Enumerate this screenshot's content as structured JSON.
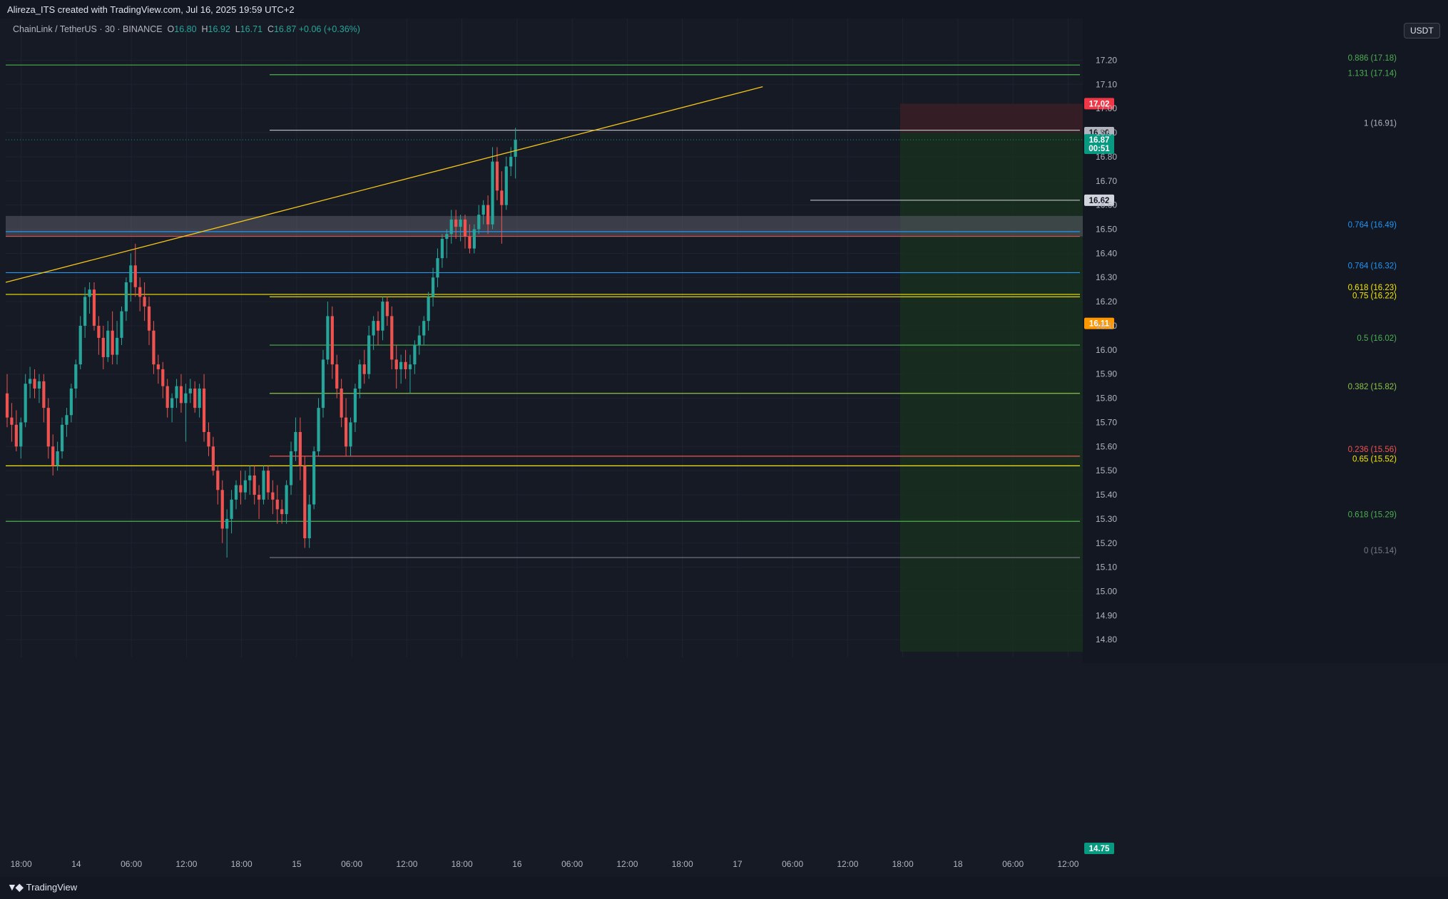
{
  "header": {
    "credit": "Alireza_ITS created with TradingView.com, Jul 16, 2025 19:59 UTC+2",
    "symbol": "ChainLink / TetherUS · 30 · BINANCE",
    "open_label": "O",
    "open": "16.80",
    "high_label": "H",
    "high": "16.92",
    "low_label": "L",
    "low": "16.71",
    "close_label": "C",
    "close": "16.87",
    "change": "+0.06 (+0.36%)"
  },
  "currency_button": "USDT",
  "footer": {
    "brand": "TradingView"
  },
  "colors": {
    "background": "#161a25",
    "bull": "#26a69a",
    "bear": "#ef5350",
    "trendline": "#f5c518",
    "stop_zone": "#3a1e26",
    "target_zone": "#17301f",
    "resistance_zone": "#5b5d66"
  },
  "chart_data": {
    "type": "candlestick",
    "symbol": "ChainLink / TetherUS",
    "interval": "30",
    "exchange": "BINANCE",
    "ylim": [
      14.75,
      17.33
    ],
    "y_ticks": [
      "17.20",
      "17.10",
      "17.00",
      "16.90",
      "16.80",
      "16.70",
      "16.60",
      "16.50",
      "16.40",
      "16.30",
      "16.20",
      "16.10",
      "16.00",
      "15.90",
      "15.80",
      "15.70",
      "15.60",
      "15.50",
      "15.40",
      "15.30",
      "15.20",
      "15.10",
      "15.00",
      "14.90",
      "14.80"
    ],
    "x_ticks": [
      "18:00",
      "14",
      "06:00",
      "12:00",
      "18:00",
      "15",
      "06:00",
      "12:00",
      "18:00",
      "16",
      "06:00",
      "12:00",
      "18:00",
      "17",
      "06:00",
      "12:00",
      "18:00",
      "18",
      "06:00",
      "12:00"
    ],
    "ohlc": [
      [
        15.82,
        15.9,
        15.68,
        15.72
      ],
      [
        15.72,
        15.78,
        15.62,
        15.69
      ],
      [
        15.69,
        15.75,
        15.58,
        15.6
      ],
      [
        15.6,
        15.72,
        15.55,
        15.7
      ],
      [
        15.7,
        15.9,
        15.68,
        15.86
      ],
      [
        15.86,
        15.93,
        15.8,
        15.88
      ],
      [
        15.88,
        15.92,
        15.8,
        15.84
      ],
      [
        15.84,
        15.9,
        15.78,
        15.87
      ],
      [
        15.87,
        15.9,
        15.7,
        15.76
      ],
      [
        15.76,
        15.8,
        15.55,
        15.6
      ],
      [
        15.6,
        15.65,
        15.48,
        15.52
      ],
      [
        15.52,
        15.62,
        15.5,
        15.58
      ],
      [
        15.58,
        15.72,
        15.55,
        15.69
      ],
      [
        15.69,
        15.76,
        15.64,
        15.73
      ],
      [
        15.73,
        15.86,
        15.7,
        15.84
      ],
      [
        15.84,
        15.96,
        15.8,
        15.94
      ],
      [
        15.94,
        16.14,
        15.92,
        16.1
      ],
      [
        16.1,
        16.26,
        16.05,
        16.22
      ],
      [
        16.22,
        16.28,
        16.15,
        16.25
      ],
      [
        16.25,
        16.28,
        16.08,
        16.1
      ],
      [
        16.1,
        16.14,
        15.98,
        16.05
      ],
      [
        16.05,
        16.1,
        15.92,
        15.97
      ],
      [
        15.97,
        16.12,
        15.95,
        16.08
      ],
      [
        16.08,
        16.16,
        15.94,
        15.98
      ],
      [
        15.98,
        16.12,
        15.94,
        16.05
      ],
      [
        16.05,
        16.18,
        16.02,
        16.16
      ],
      [
        16.16,
        16.3,
        16.12,
        16.28
      ],
      [
        16.28,
        16.4,
        16.2,
        16.35
      ],
      [
        16.35,
        16.44,
        16.22,
        16.26
      ],
      [
        16.26,
        16.3,
        16.16,
        16.22
      ],
      [
        16.22,
        16.28,
        16.12,
        16.18
      ],
      [
        16.18,
        16.22,
        16.02,
        16.08
      ],
      [
        16.08,
        16.12,
        15.9,
        15.94
      ],
      [
        15.94,
        15.98,
        15.86,
        15.92
      ],
      [
        15.92,
        15.95,
        15.8,
        15.85
      ],
      [
        15.85,
        15.88,
        15.72,
        15.76
      ],
      [
        15.76,
        15.82,
        15.7,
        15.8
      ],
      [
        15.8,
        15.88,
        15.76,
        15.85
      ],
      [
        15.85,
        15.9,
        15.74,
        15.78
      ],
      [
        15.78,
        15.86,
        15.62,
        15.82
      ],
      [
        15.82,
        15.88,
        15.78,
        15.84
      ],
      [
        15.84,
        15.87,
        15.74,
        15.76
      ],
      [
        15.76,
        15.86,
        15.72,
        15.84
      ],
      [
        15.84,
        15.9,
        15.62,
        15.66
      ],
      [
        15.66,
        15.7,
        15.56,
        15.6
      ],
      [
        15.6,
        15.64,
        15.48,
        15.5
      ],
      [
        15.5,
        15.52,
        15.36,
        15.42
      ],
      [
        15.42,
        15.46,
        15.2,
        15.26
      ],
      [
        15.26,
        15.34,
        15.14,
        15.3
      ],
      [
        15.3,
        15.42,
        15.24,
        15.38
      ],
      [
        15.38,
        15.46,
        15.34,
        15.44
      ],
      [
        15.44,
        15.5,
        15.36,
        15.41
      ],
      [
        15.41,
        15.5,
        15.38,
        15.46
      ],
      [
        15.46,
        15.52,
        15.4,
        15.48
      ],
      [
        15.48,
        15.52,
        15.36,
        15.4
      ],
      [
        15.4,
        15.44,
        15.3,
        15.38
      ],
      [
        15.38,
        15.52,
        15.36,
        15.5
      ],
      [
        15.5,
        15.52,
        15.38,
        15.41
      ],
      [
        15.41,
        15.46,
        15.32,
        15.38
      ],
      [
        15.38,
        15.44,
        15.28,
        15.34
      ],
      [
        15.34,
        15.38,
        15.28,
        15.32
      ],
      [
        15.32,
        15.46,
        15.28,
        15.44
      ],
      [
        15.44,
        15.62,
        15.4,
        15.58
      ],
      [
        15.58,
        15.72,
        15.54,
        15.66
      ],
      [
        15.66,
        15.72,
        15.46,
        15.52
      ],
      [
        15.52,
        15.56,
        15.18,
        15.22
      ],
      [
        15.22,
        15.4,
        15.18,
        15.36
      ],
      [
        15.36,
        15.6,
        15.34,
        15.58
      ],
      [
        15.58,
        15.8,
        15.56,
        15.76
      ],
      [
        15.76,
        16.0,
        15.72,
        15.96
      ],
      [
        15.96,
        16.2,
        15.94,
        16.14
      ],
      [
        16.14,
        16.18,
        15.88,
        15.94
      ],
      [
        15.94,
        15.98,
        15.8,
        15.84
      ],
      [
        15.84,
        15.88,
        15.68,
        15.72
      ],
      [
        15.72,
        15.8,
        15.56,
        15.6
      ],
      [
        15.6,
        15.72,
        15.56,
        15.7
      ],
      [
        15.7,
        15.86,
        15.66,
        15.84
      ],
      [
        15.84,
        15.96,
        15.8,
        15.94
      ],
      [
        15.94,
        16.0,
        15.86,
        15.9
      ],
      [
        15.9,
        16.1,
        15.88,
        16.06
      ],
      [
        16.06,
        16.14,
        16.0,
        16.12
      ],
      [
        16.12,
        16.16,
        16.02,
        16.08
      ],
      [
        16.08,
        16.22,
        16.04,
        16.2
      ],
      [
        16.2,
        16.22,
        16.1,
        16.14
      ],
      [
        16.14,
        16.18,
        15.92,
        15.96
      ],
      [
        15.96,
        16.02,
        15.84,
        15.92
      ],
      [
        15.92,
        15.98,
        15.86,
        15.95
      ],
      [
        15.95,
        16.0,
        15.88,
        15.92
      ],
      [
        15.92,
        15.98,
        15.82,
        15.94
      ],
      [
        15.94,
        16.04,
        15.9,
        16.02
      ],
      [
        16.02,
        16.1,
        15.98,
        16.06
      ],
      [
        16.06,
        16.14,
        16.02,
        16.12
      ],
      [
        16.12,
        16.24,
        16.08,
        16.22
      ],
      [
        16.22,
        16.34,
        16.18,
        16.3
      ],
      [
        16.3,
        16.42,
        16.26,
        16.38
      ],
      [
        16.38,
        16.48,
        16.34,
        16.46
      ],
      [
        16.46,
        16.5,
        16.38,
        16.48
      ],
      [
        16.48,
        16.58,
        16.44,
        16.54
      ],
      [
        16.54,
        16.58,
        16.46,
        16.51
      ],
      [
        16.51,
        16.56,
        16.45,
        16.54
      ],
      [
        16.54,
        16.56,
        16.42,
        16.47
      ],
      [
        16.47,
        16.52,
        16.4,
        16.42
      ],
      [
        16.42,
        16.52,
        16.4,
        16.5
      ],
      [
        16.5,
        16.6,
        16.48,
        16.56
      ],
      [
        16.56,
        16.62,
        16.52,
        16.6
      ],
      [
        16.6,
        16.64,
        16.48,
        16.52
      ],
      [
        16.52,
        16.84,
        16.5,
        16.78
      ],
      [
        16.78,
        16.84,
        16.62,
        16.66
      ],
      [
        16.66,
        16.74,
        16.44,
        16.6
      ],
      [
        16.6,
        16.8,
        16.58,
        16.76
      ],
      [
        16.76,
        16.84,
        16.72,
        16.8
      ],
      [
        16.8,
        16.92,
        16.71,
        16.87
      ]
    ],
    "fibonacci_levels": [
      {
        "label": "0.886 (17.18)",
        "price": 17.18,
        "color": "#4caf50"
      },
      {
        "label": "1.131 (17.14)",
        "price": 17.14,
        "color": "#4caf50"
      },
      {
        "label": "1 (16.91)",
        "price": 16.91,
        "color": "#b2b5be"
      },
      {
        "label": "0.764 (16.49)",
        "price": 16.49,
        "color": "#2196f3"
      },
      {
        "label": "0.764 (16.32)",
        "price": 16.32,
        "color": "#2196f3"
      },
      {
        "label": "0.618 (16.23)",
        "price": 16.23,
        "color": "#f5e60b"
      },
      {
        "label": "0.75 (16.22)",
        "price": 16.22,
        "color": "#f5e60b"
      },
      {
        "label": "0.5 (16.02)",
        "price": 16.02,
        "color": "#4caf50"
      },
      {
        "label": "0.382 (15.82)",
        "price": 15.82,
        "color": "#8bc34a"
      },
      {
        "label": "0.236 (15.56)",
        "price": 15.56,
        "color": "#ef5350"
      },
      {
        "label": "0.65 (15.52)",
        "price": 15.52,
        "color": "#f5e60b"
      },
      {
        "label": "0.618 (15.29)",
        "price": 15.29,
        "color": "#4caf50"
      },
      {
        "label": "0 (15.14)",
        "price": 15.14,
        "color": "#787b86"
      }
    ],
    "price_labels": [
      {
        "text": "17.02",
        "price": 17.02,
        "color": "#f23645"
      },
      {
        "text": "16.90",
        "price": 16.9,
        "color": "#b2b5be"
      },
      {
        "text": "16.87",
        "price": 16.87,
        "color": "#089981"
      },
      {
        "text": "00:51",
        "price": 16.835,
        "color": "#089981"
      },
      {
        "text": "16.62",
        "price": 16.62,
        "color": "#d1d4dc"
      },
      {
        "text": "16.11",
        "price": 16.11,
        "color": "#ff9800"
      },
      {
        "text": "14.75",
        "price": 14.75,
        "color": "#089981"
      }
    ],
    "resistance_zone": [
      16.47,
      16.555
    ],
    "position": {
      "entry": 16.9,
      "stop": 17.02,
      "target": 14.75
    },
    "trendline": [
      [
        0,
        16.28
      ],
      [
        165,
        17.09
      ]
    ]
  }
}
